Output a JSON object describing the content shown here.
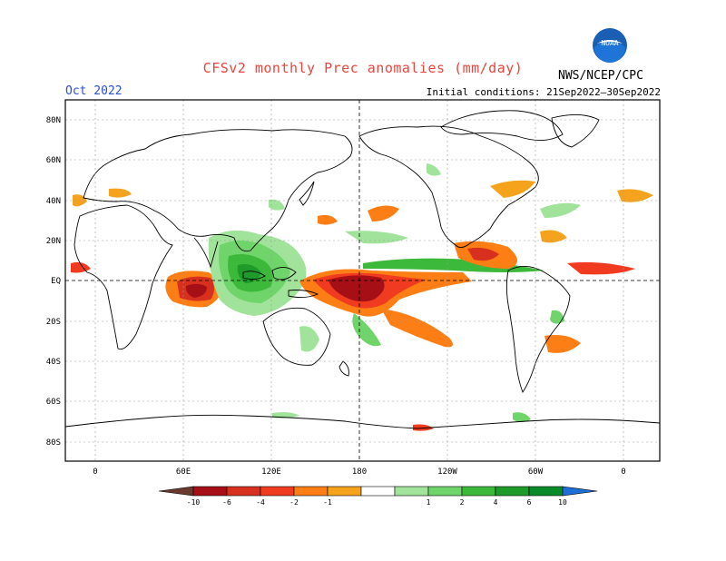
{
  "title": "CFSv2 monthly Prec anomalies (mm/day)",
  "valid_month": "Oct 2022",
  "agency": "NWS/NCEP/CPC",
  "logo_text": "NOAA",
  "initial_conditions": "Initial conditions: 21Sep2022–30Sep2022",
  "lat_labels": [
    "80N",
    "60N",
    "40N",
    "20N",
    "EQ",
    "20S",
    "40S",
    "60S",
    "80S"
  ],
  "lon_labels": [
    "0",
    "60E",
    "120E",
    "180",
    "120W",
    "60W",
    "0"
  ],
  "colorbar": {
    "labels": [
      "-10",
      "-6",
      "-4",
      "-2",
      "-1",
      "1",
      "2",
      "4",
      "6",
      "10"
    ],
    "colors": [
      "#6b3a2e",
      "#a50f15",
      "#d7301f",
      "#f03b20",
      "#fd7e14",
      "#f5a31c",
      "#ffffff",
      "#a1e39b",
      "#6fd46a",
      "#3cb83a",
      "#1f9b2a",
      "#0b8a2a",
      "#1f6fd6"
    ]
  }
}
